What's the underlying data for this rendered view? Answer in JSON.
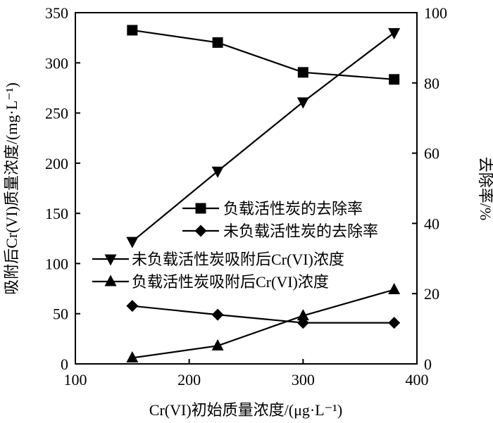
{
  "chart_data": {
    "type": "line",
    "xlabel": "Cr(VI)初始质量浓度/(μg·L⁻¹)",
    "ylabel_left": "吸附后Cr(VI)质量浓度/(mg·L⁻¹)",
    "ylabel_right": "去除率/%",
    "xlim": [
      100,
      400
    ],
    "ylim_left": [
      0,
      350
    ],
    "ylim_right": [
      0,
      100
    ],
    "x_ticks": [
      "100",
      "200",
      "300",
      "400"
    ],
    "y_left_ticks": [
      "0",
      "50",
      "100",
      "150",
      "200",
      "250",
      "300",
      "350"
    ],
    "y_right_ticks": [
      "0",
      "20",
      "40",
      "60",
      "80",
      "100"
    ],
    "x": [
      150,
      225,
      300,
      380
    ],
    "series": [
      {
        "name": "负载活性炭的去除率",
        "axis": "right",
        "marker": "square",
        "values": [
          95,
          91.5,
          83,
          81
        ]
      },
      {
        "name": "未负载活性炭的去除率",
        "axis": "right",
        "marker": "diamond",
        "values": [
          16.5,
          14,
          11.7,
          11.7
        ]
      },
      {
        "name": "未负载活性炭吸附后Cr(VI)浓度",
        "axis": "left",
        "marker": "triangle-down",
        "values": [
          122,
          192,
          261,
          330
        ]
      },
      {
        "name": "负载活性炭吸附后Cr(VI)浓度",
        "axis": "left",
        "marker": "triangle-up",
        "values": [
          6,
          18,
          48,
          74
        ]
      }
    ],
    "legend": [
      {
        "series": 0,
        "placement": "mid-right"
      },
      {
        "series": 1,
        "placement": "mid-right"
      },
      {
        "series": 2,
        "placement": "mid-left"
      },
      {
        "series": 3,
        "placement": "mid-left"
      }
    ],
    "grid": false
  }
}
